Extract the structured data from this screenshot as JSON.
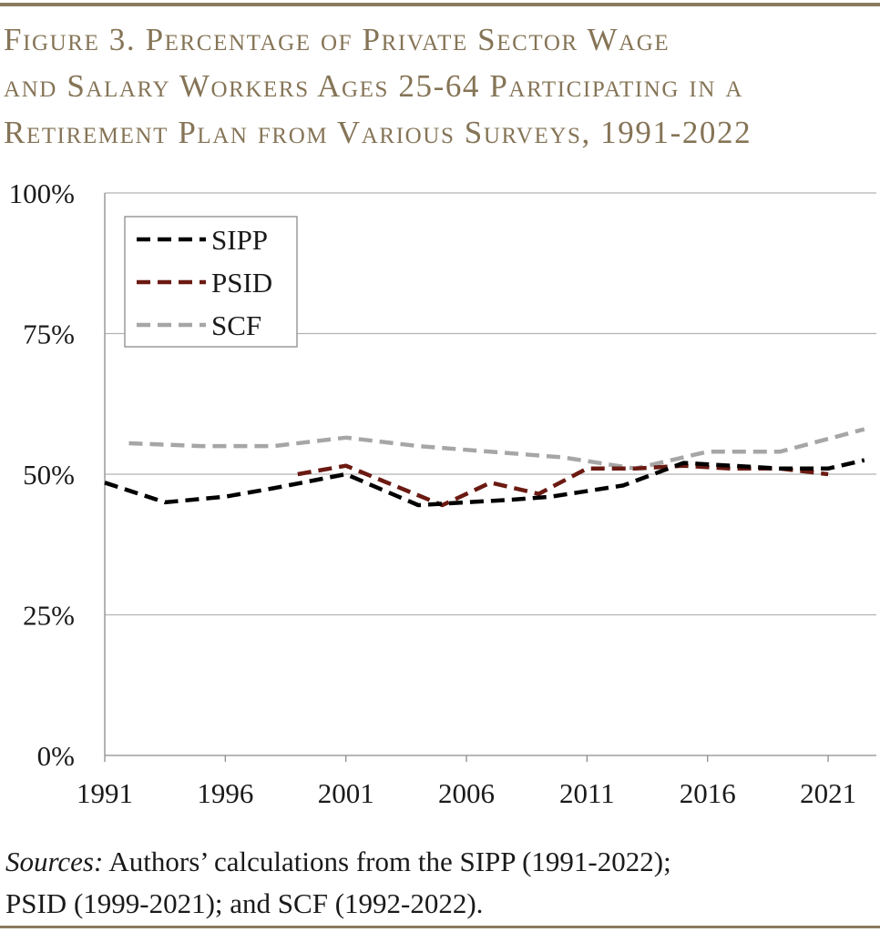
{
  "title_lines": [
    "Figure 3. Percentage of Private Sector Wage",
    "and Salary Workers Ages 25-64 Participating in a",
    "Retirement Plan from Various Surveys, 1991-2022"
  ],
  "source": {
    "label": "Sources:",
    "line1": " Authors’ calculations from the SIPP (1991-2022);",
    "line2": "PSID (1999-2021); and SCF (1992-2022)."
  },
  "colors": {
    "title": "#857456",
    "rule": "#8a7b5e",
    "SIPP": "#000000",
    "PSID": "#6b1a12",
    "SCF": "#a6a6a6",
    "grid": "#b3b3b3"
  },
  "chart_data": {
    "type": "line",
    "title": "Figure 3. Percentage of Private Sector Wage and Salary Workers Ages 25-64 Participating in a Retirement Plan from Various Surveys, 1991-2022",
    "xlabel": "",
    "ylabel": "",
    "xlim": [
      1991,
      2023
    ],
    "ylim": [
      0,
      100
    ],
    "x_ticks": [
      1991,
      1996,
      2001,
      2006,
      2011,
      2016,
      2021
    ],
    "x_tick_labels": [
      "1991",
      "1996",
      "2001",
      "2006",
      "2011",
      "2016",
      "2021"
    ],
    "y_ticks": [
      0,
      25,
      50,
      75,
      100
    ],
    "y_tick_labels": [
      "0%",
      "25%",
      "50%",
      "75%",
      "100%"
    ],
    "grid": true,
    "legend_position": "top-left",
    "series": [
      {
        "name": "SIPP",
        "x": [
          1991,
          1993.5,
          1996,
          1998,
          2001,
          2004,
          2006,
          2008,
          2009.5,
          2012.5,
          2015,
          2017,
          2019,
          2021,
          2022.5
        ],
        "values": [
          48.5,
          45,
          46,
          47.5,
          50,
          44.5,
          45,
          45.5,
          46,
          48,
          52,
          51.5,
          51,
          51,
          52.5
        ]
      },
      {
        "name": "PSID",
        "x": [
          1999,
          2001,
          2003,
          2005,
          2007,
          2009,
          2011,
          2013,
          2015,
          2017,
          2019,
          2021
        ],
        "values": [
          50,
          51.5,
          48,
          44.5,
          48.5,
          46.5,
          51,
          51,
          51.5,
          51,
          51,
          50
        ]
      },
      {
        "name": "SCF",
        "x": [
          1992,
          1995,
          1998,
          2001,
          2004,
          2007,
          2010,
          2013,
          2016,
          2019,
          2022.5
        ],
        "values": [
          55.5,
          55,
          55,
          56.5,
          55,
          54,
          53,
          51,
          54,
          54,
          58
        ]
      }
    ]
  }
}
